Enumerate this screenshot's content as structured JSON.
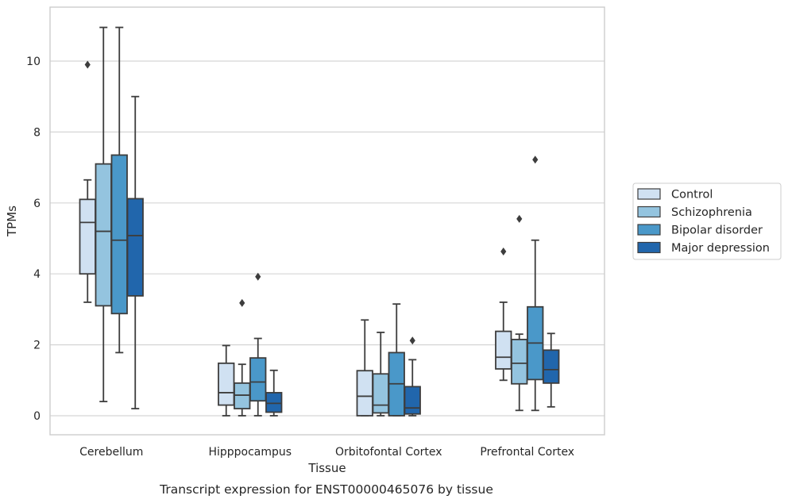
{
  "chart_data": {
    "type": "box",
    "caption": "Transcript expression for ENST00000465076 by tissue",
    "xlabel": "Tissue",
    "ylabel": "TPMs",
    "ylim": [
      -0.5,
      11.5
    ],
    "yticks": [
      0,
      2,
      4,
      6,
      8,
      10
    ],
    "grid": "horizontal",
    "legend_position": "right",
    "categories": [
      "Cerebellum",
      "Hipppocampus",
      "Orbitofontal Cortex",
      "Prefrontal Cortex"
    ],
    "series": [
      {
        "name": "Control",
        "color": "#d0e1f2",
        "boxes": [
          {
            "whislo": 3.2,
            "q1": 4.0,
            "med": 5.45,
            "q3": 6.1,
            "whishi": 6.65,
            "fliers": [
              9.9
            ]
          },
          {
            "whislo": 0.0,
            "q1": 0.3,
            "med": 0.65,
            "q3": 1.48,
            "whishi": 1.98,
            "fliers": []
          },
          {
            "whislo": 0.0,
            "q1": 0.0,
            "med": 0.55,
            "q3": 1.27,
            "whishi": 2.7,
            "fliers": []
          },
          {
            "whislo": 1.0,
            "q1": 1.32,
            "med": 1.65,
            "q3": 2.38,
            "whishi": 3.2,
            "fliers": [
              4.63
            ]
          }
        ]
      },
      {
        "name": "Schizophrenia",
        "color": "#94c4df",
        "boxes": [
          {
            "whislo": 0.4,
            "q1": 3.1,
            "med": 5.2,
            "q3": 7.1,
            "whishi": 10.95,
            "fliers": []
          },
          {
            "whislo": 0.0,
            "q1": 0.2,
            "med": 0.58,
            "q3": 0.92,
            "whishi": 1.45,
            "fliers": [
              3.18
            ]
          },
          {
            "whislo": 0.0,
            "q1": 0.08,
            "med": 0.3,
            "q3": 1.18,
            "whishi": 2.35,
            "fliers": []
          },
          {
            "whislo": 0.15,
            "q1": 0.9,
            "med": 1.48,
            "q3": 2.15,
            "whishi": 2.3,
            "fliers": [
              5.55
            ]
          }
        ]
      },
      {
        "name": "Bipolar disorder",
        "color": "#4a98c9",
        "boxes": [
          {
            "whislo": 1.78,
            "q1": 2.88,
            "med": 4.95,
            "q3": 7.35,
            "whishi": 10.95,
            "fliers": []
          },
          {
            "whislo": 0.0,
            "q1": 0.42,
            "med": 0.95,
            "q3": 1.63,
            "whishi": 2.18,
            "fliers": [
              3.92
            ]
          },
          {
            "whislo": 0.0,
            "q1": 0.0,
            "med": 0.9,
            "q3": 1.78,
            "whishi": 3.15,
            "fliers": []
          },
          {
            "whislo": 0.15,
            "q1": 1.02,
            "med": 2.05,
            "q3": 3.07,
            "whishi": 4.95,
            "fliers": [
              7.22
            ]
          }
        ]
      },
      {
        "name": "Major depression",
        "color": "#2166ac",
        "boxes": [
          {
            "whislo": 0.2,
            "q1": 3.38,
            "med": 5.08,
            "q3": 6.12,
            "whishi": 9.0,
            "fliers": []
          },
          {
            "whislo": 0.0,
            "q1": 0.1,
            "med": 0.35,
            "q3": 0.65,
            "whishi": 1.28,
            "fliers": []
          },
          {
            "whislo": 0.0,
            "q1": 0.05,
            "med": 0.22,
            "q3": 0.82,
            "whishi": 1.58,
            "fliers": [
              2.12
            ]
          },
          {
            "whislo": 0.25,
            "q1": 0.92,
            "med": 1.3,
            "q3": 1.85,
            "whishi": 2.32,
            "fliers": []
          }
        ]
      }
    ]
  }
}
